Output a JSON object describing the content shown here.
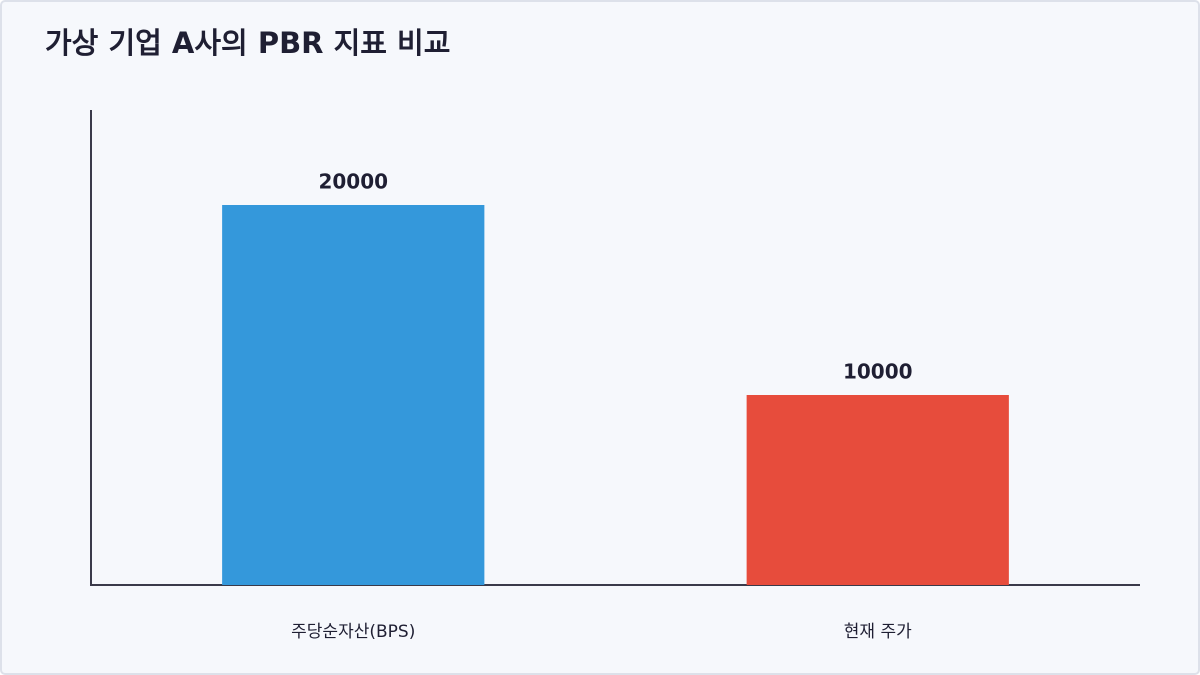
{
  "chart_data": {
    "type": "bar",
    "title": "가상 기업 A사의 PBR 지표 비교",
    "categories": [
      "주당순자산(BPS)",
      "현재 주가"
    ],
    "values": [
      20000,
      10000
    ],
    "colors": [
      "#3498db",
      "#e74c3c"
    ],
    "ylim": [
      0,
      25000
    ]
  }
}
